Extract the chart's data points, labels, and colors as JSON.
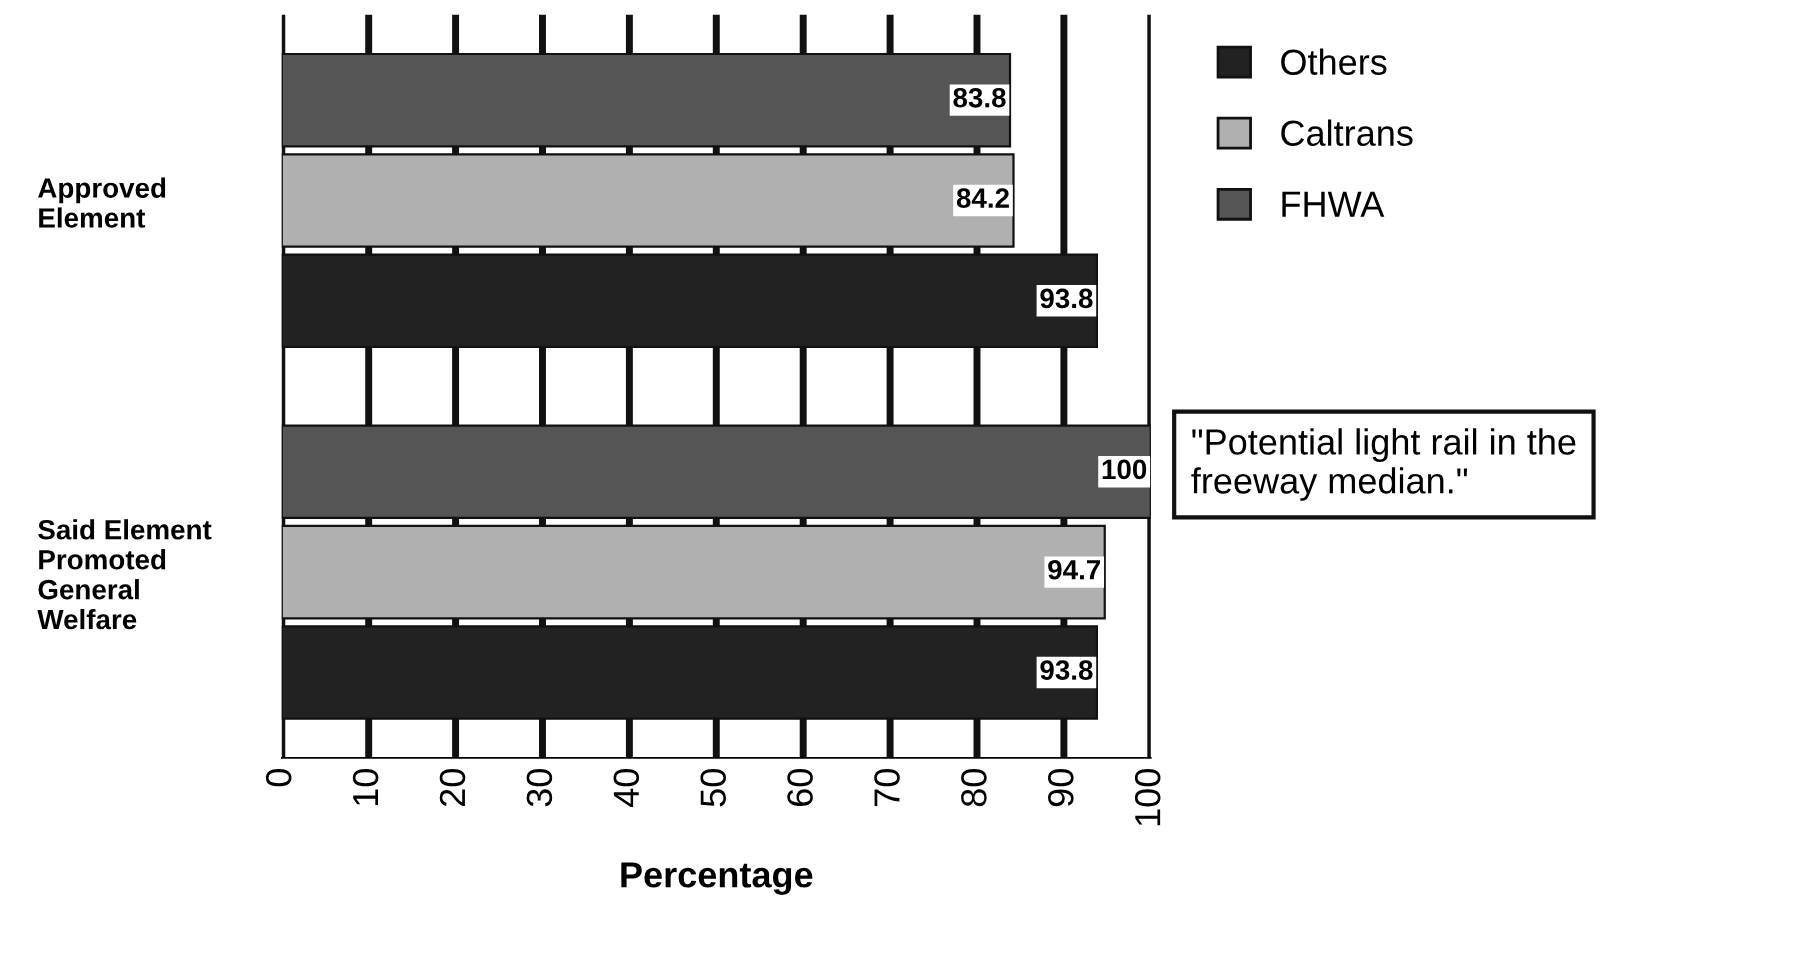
{
  "chart_data": {
    "type": "bar",
    "orientation": "horizontal",
    "xlabel": "Percentage",
    "categories": [
      "Approved\nElement",
      "Said Element\nPromoted\nGeneral\nWelfare"
    ],
    "series": [
      {
        "name": "Others",
        "color": "#222222",
        "values": [
          93.8,
          93.8
        ]
      },
      {
        "name": "Caltrans",
        "color": "#b0b0b0",
        "values": [
          84.2,
          94.7
        ]
      },
      {
        "name": "FHWA",
        "color": "#555555",
        "values": [
          83.8,
          100
        ]
      }
    ],
    "xlim": [
      0,
      100
    ],
    "xticks": [
      0,
      10,
      20,
      30,
      40,
      50,
      60,
      70,
      80,
      90,
      100
    ],
    "grid": "x",
    "legend": "top right",
    "data_labels": true,
    "annotations": [
      "\"Potential light rail in the\nfreeway median.\""
    ]
  }
}
